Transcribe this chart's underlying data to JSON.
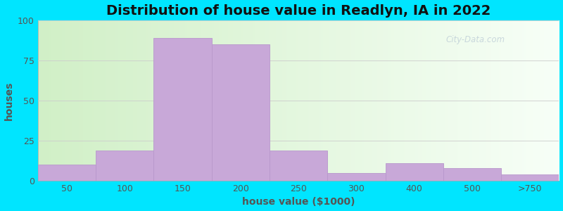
{
  "title": "Distribution of house value in Readlyn, IA in 2022",
  "xlabel": "house value ($1000)",
  "ylabel": "houses",
  "bar_labels": [
    "50",
    "100",
    "150",
    "200",
    "250",
    "300",
    "400",
    "500",
    ">750"
  ],
  "bar_values": [
    10,
    19,
    89,
    85,
    19,
    5,
    11,
    8,
    4
  ],
  "bar_color": "#c8a8d8",
  "bar_edgecolor": "#b898cc",
  "ylim": [
    0,
    100
  ],
  "yticks": [
    0,
    25,
    50,
    75,
    100
  ],
  "bg_color_topleft": "#c8e8c0",
  "bg_color_topright": "#f0f8f0",
  "bg_color_bottomleft": "#d8f0d0",
  "bg_color_bottomright": "#ffffff",
  "outer_bg": "#00e5ff",
  "title_fontsize": 14,
  "axis_label_fontsize": 10,
  "tick_fontsize": 9,
  "watermark_text": "City-Data.com",
  "watermark_color": "#b8c8d4",
  "watermark_alpha": 0.7,
  "figsize": [
    8.0,
    3.0
  ],
  "dpi": 100
}
